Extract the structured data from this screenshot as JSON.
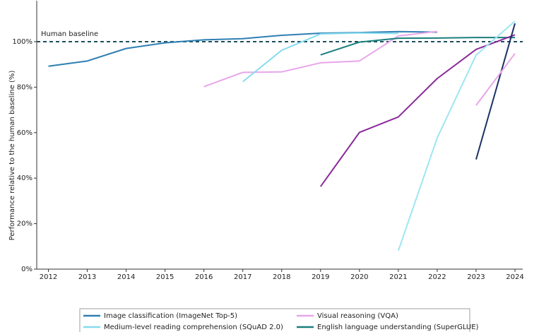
{
  "chart_data": {
    "type": "line",
    "y_label": "Performance relative to the human baseline (%)",
    "x": [
      2012,
      2013,
      2014,
      2015,
      2016,
      2017,
      2018,
      2019,
      2020,
      2021,
      2022,
      2023,
      2024
    ],
    "xlim": [
      2011.7,
      2024.2
    ],
    "xticks": [
      2012,
      2013,
      2014,
      2015,
      2016,
      2017,
      2018,
      2019,
      2020,
      2021,
      2022,
      2023,
      2024
    ],
    "ylim": [
      0,
      118
    ],
    "yticks": [
      {
        "value": 0,
        "label": "0%"
      },
      {
        "value": 20,
        "label": "20%"
      },
      {
        "value": 40,
        "label": "40%"
      },
      {
        "value": 60,
        "label": "60%"
      },
      {
        "value": 80,
        "label": "80%"
      },
      {
        "value": 100,
        "label": "100%"
      }
    ],
    "baseline": {
      "value": 100,
      "label": "Human baseline",
      "color": "#1d4e5e"
    },
    "series": [
      {
        "name": "Image classification (ImageNet Top-5)",
        "color": "#2e7fb3",
        "values": [
          89.2,
          91.5,
          97,
          99.5,
          100.8,
          101.3,
          102.8,
          103.7,
          104,
          104.4,
          104.2,
          null,
          null
        ]
      },
      {
        "name": "Visual reasoning (VQA)",
        "color": "#e8a6ea",
        "values": [
          null,
          null,
          null,
          null,
          80.2,
          86.5,
          86.7,
          90.7,
          91.5,
          102.5,
          104.5,
          null,
          null
        ]
      },
      {
        "name": "Medium-level reading comprehension (SQuAD 2.0)",
        "color": "#86dcef",
        "values": [
          null,
          null,
          null,
          null,
          null,
          82.4,
          96.2,
          103.4,
          103.8,
          103.6,
          null,
          null,
          null
        ]
      },
      {
        "name": "English language understanding (SuperGLUE)",
        "color": "#1a7f7c",
        "values": [
          null,
          null,
          null,
          null,
          null,
          null,
          null,
          94.2,
          99.8,
          101.5,
          101.6,
          101.8,
          101.8
        ]
      },
      {
        "color": "#8a2a9a",
        "values": [
          null,
          null,
          null,
          null,
          null,
          null,
          null,
          36.3,
          60.1,
          66.9,
          83.8,
          96.6,
          103
        ]
      },
      {
        "color": "#1c3263",
        "values": [
          null,
          null,
          null,
          null,
          null,
          null,
          null,
          null,
          null,
          null,
          null,
          48.2,
          108
        ]
      },
      {
        "color": "#e8a6ea",
        "values": [
          null,
          null,
          null,
          null,
          null,
          null,
          null,
          null,
          null,
          null,
          null,
          72,
          94.8
        ]
      },
      {
        "color": "#9ee6f2",
        "values": [
          null,
          null,
          null,
          null,
          null,
          null,
          null,
          null,
          null,
          8.1,
          57.7,
          94.1,
          109
        ]
      }
    ]
  }
}
